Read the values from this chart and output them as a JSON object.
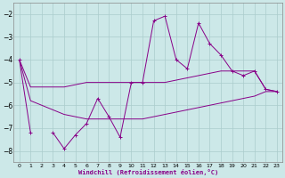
{
  "x": [
    0,
    1,
    2,
    3,
    4,
    5,
    6,
    7,
    8,
    9,
    10,
    11,
    12,
    13,
    14,
    15,
    16,
    17,
    18,
    19,
    20,
    21,
    22,
    23
  ],
  "line_main": [
    -4.0,
    -7.2,
    null,
    -7.2,
    -7.9,
    -7.3,
    -6.8,
    -5.7,
    -6.5,
    -7.4,
    -5.0,
    -5.0,
    -2.3,
    -2.1,
    -4.0,
    -4.4,
    -2.4,
    -3.3,
    -3.8,
    -4.5,
    -4.7,
    -4.5,
    -5.3,
    -5.4
  ],
  "line_upper": [
    -4.0,
    -5.2,
    -5.2,
    -5.2,
    -5.2,
    -5.1,
    -5.0,
    -5.0,
    -5.0,
    -5.0,
    -5.0,
    -5.0,
    -5.0,
    -5.0,
    -4.9,
    -4.8,
    -4.7,
    -4.6,
    -4.5,
    -4.5,
    -4.5,
    -4.5,
    -5.3,
    -5.4
  ],
  "line_lower": [
    -4.0,
    -5.8,
    -6.0,
    -6.2,
    -6.4,
    -6.5,
    -6.6,
    -6.6,
    -6.6,
    -6.6,
    -6.6,
    -6.6,
    -6.5,
    -6.4,
    -6.3,
    -6.2,
    -6.1,
    -6.0,
    -5.9,
    -5.8,
    -5.7,
    -5.6,
    -5.4,
    -5.4
  ],
  "bg_color": "#cce8e8",
  "grid_color": "#aacccc",
  "line_color": "#880088",
  "xlabel": "Windchill (Refroidissement éolien,°C)",
  "ylim": [
    -8.5,
    -1.5
  ],
  "xlim": [
    -0.5,
    23.5
  ],
  "yticks": [
    -8,
    -7,
    -6,
    -5,
    -4,
    -3,
    -2
  ],
  "xticks": [
    0,
    1,
    2,
    3,
    4,
    5,
    6,
    7,
    8,
    9,
    10,
    11,
    12,
    13,
    14,
    15,
    16,
    17,
    18,
    19,
    20,
    21,
    22,
    23
  ]
}
